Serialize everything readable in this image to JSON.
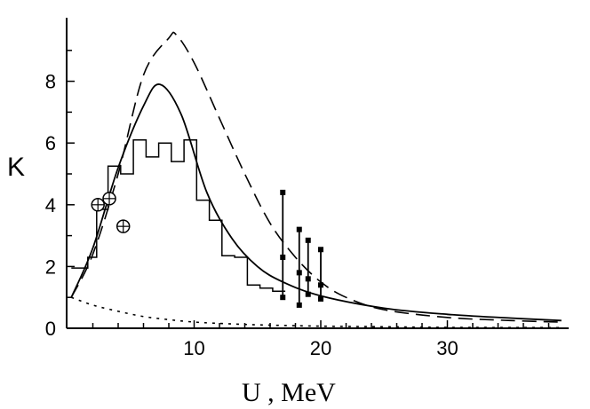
{
  "chart_data": {
    "type": "line",
    "title": "",
    "xlabel": "U , MeV",
    "ylabel": "K",
    "xlim": [
      0,
      40
    ],
    "ylim": [
      0,
      10
    ],
    "x_ticks": [
      10,
      20,
      30
    ],
    "y_ticks": [
      0,
      2,
      4,
      6,
      8
    ],
    "grid": false,
    "legend": "none",
    "series": [
      {
        "style": "solid",
        "x": [
          0.3,
          2,
          4,
          6,
          7.3,
          9,
          11,
          13,
          15,
          17,
          20,
          25,
          30,
          35,
          39
        ],
        "y": [
          1.0,
          2.6,
          5.2,
          7.2,
          7.9,
          6.9,
          4.4,
          2.9,
          2.0,
          1.5,
          1.05,
          0.65,
          0.45,
          0.33,
          0.25
        ]
      },
      {
        "style": "dashed",
        "x": [
          0.3,
          2,
          4,
          6,
          8,
          8.6,
          10,
          12,
          14,
          16,
          18,
          20,
          22,
          25,
          30,
          35,
          39
        ],
        "y": [
          1.0,
          2.4,
          5.0,
          8.2,
          9.4,
          9.5,
          8.6,
          6.8,
          5.0,
          3.4,
          2.3,
          1.5,
          1.0,
          0.6,
          0.35,
          0.25,
          0.2
        ]
      },
      {
        "style": "dotted",
        "x": [
          0.3,
          2,
          4,
          6,
          8,
          10,
          13,
          16,
          20,
          25,
          30,
          39
        ],
        "y": [
          1.0,
          0.75,
          0.55,
          0.38,
          0.28,
          0.2,
          0.14,
          0.1,
          0.07,
          0.05,
          0.03,
          0.02
        ]
      },
      {
        "style": "histogram",
        "edges": [
          0.3,
          1.6,
          2.3,
          3.2,
          4.2,
          5.2,
          6.2,
          7.2,
          8.2,
          9.2,
          10.2,
          11.2,
          12.2,
          13.2,
          14.2,
          15.2,
          16.2,
          17.2
        ],
        "values": [
          1.95,
          2.3,
          3.85,
          5.25,
          5.0,
          6.1,
          5.55,
          6.0,
          5.4,
          6.1,
          4.15,
          3.5,
          2.35,
          2.3,
          1.4,
          1.3,
          1.2
        ]
      },
      {
        "style": "circle-plus",
        "x": [
          2.4,
          3.3,
          4.4
        ],
        "y": [
          4.0,
          4.2,
          3.3
        ]
      },
      {
        "style": "error-bars",
        "points": [
          {
            "x": 17.0,
            "y_low": 1.0,
            "y_high": 4.4,
            "marks": [
              1.0,
              2.3,
              4.4
            ]
          },
          {
            "x": 18.3,
            "y_low": 0.75,
            "y_high": 3.2,
            "marks": [
              0.75,
              1.8,
              3.2
            ]
          },
          {
            "x": 19.0,
            "y_low": 1.1,
            "y_high": 2.85,
            "marks": [
              1.1,
              1.6,
              2.85
            ]
          },
          {
            "x": 20.0,
            "y_low": 0.95,
            "y_high": 2.55,
            "marks": [
              0.95,
              1.4,
              2.55
            ]
          }
        ]
      }
    ]
  }
}
